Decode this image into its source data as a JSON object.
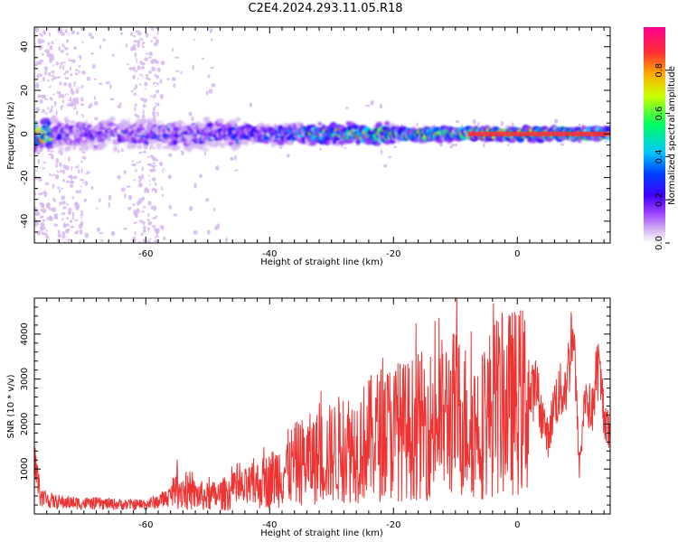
{
  "title": "C2E4.2024.293.11.05.R18",
  "chart_data": [
    {
      "type": "heatmap",
      "xlabel": "Height of straight line (km)",
      "ylabel": "Frequency (Hz)",
      "xlim": [
        -78,
        15
      ],
      "ylim": [
        -50,
        49
      ],
      "xticks": [
        -60,
        -40,
        -20,
        0
      ],
      "yticks": [
        -40,
        -20,
        0,
        20,
        40
      ],
      "colorbar": {
        "label": "Normalized spectral amplitude",
        "range": [
          0,
          1
        ],
        "ticks": [
          "0.0",
          "0.2",
          "0.4",
          "0.6",
          "0.8"
        ],
        "colors": [
          "#ffffff",
          "#d6b8f0",
          "#9a40ff",
          "#4000ff",
          "#0040ff",
          "#00c8ff",
          "#00ff60",
          "#c8ff00",
          "#ffb000",
          "#ff3030",
          "#ff0090"
        ]
      },
      "band_center_hz": 0,
      "description_points": [
        {
          "x": -75,
          "amp": 0.35
        },
        {
          "x": -60,
          "amp": 0.35
        },
        {
          "x": -40,
          "amp": 0.45
        },
        {
          "x": -26,
          "amp": 0.75
        },
        {
          "x": -10,
          "amp": 0.8
        },
        {
          "x": 0,
          "amp": 0.85
        },
        {
          "x": 12,
          "amp": 0.8
        }
      ]
    },
    {
      "type": "line",
      "xlabel": "Height of straight line (km)",
      "ylabel": "SNR (10 * v/v)",
      "xlim": [
        -78,
        15
      ],
      "ylim": [
        0,
        4800
      ],
      "xticks": [
        -60,
        -40,
        -20,
        0
      ],
      "yticks": [
        1000,
        2000,
        3000,
        4000
      ],
      "series": [
        {
          "color": "#ee3333",
          "x": [
            -78,
            -77,
            -75,
            -72,
            -70,
            -67,
            -65,
            -62,
            -60,
            -58,
            -56,
            -55,
            -53,
            -50,
            -48,
            -46,
            -44,
            -42,
            -40,
            -38,
            -36,
            -34,
            -32,
            -30,
            -28,
            -26,
            -24,
            -22,
            -20,
            -18,
            -16,
            -14,
            -12,
            -10,
            -8,
            -6,
            -4,
            -2,
            0,
            2,
            3,
            4,
            5,
            6,
            7,
            8,
            9,
            10,
            11,
            12,
            13,
            14,
            15
          ],
          "y": [
            1150,
            400,
            280,
            250,
            240,
            230,
            220,
            210,
            220,
            280,
            400,
            600,
            450,
            380,
            420,
            500,
            550,
            650,
            750,
            950,
            1100,
            1200,
            1250,
            1350,
            1500,
            1500,
            1650,
            1800,
            1850,
            1850,
            1950,
            2000,
            2150,
            2250,
            2050,
            1950,
            2350,
            2450,
            2500,
            2550,
            2850,
            2200,
            1650,
            2500,
            2700,
            2900,
            4300,
            1000,
            2700,
            2200,
            3300,
            2300,
            1600
          ]
        }
      ]
    }
  ]
}
